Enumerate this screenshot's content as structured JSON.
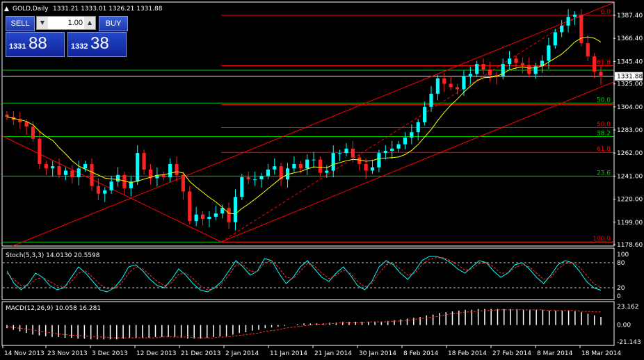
{
  "header": {
    "symbol": "GOLD,Daily",
    "ohlc": "1331.21 1333.01 1326.21 1331.88"
  },
  "trade_panel": {
    "sell_label": "SELL",
    "buy_label": "BUY",
    "lot_value": "1.00",
    "bid_prefix": "1331",
    "bid_big": "88",
    "ask_prefix": "1332",
    "ask_big": "38"
  },
  "colors": {
    "background": "#000000",
    "bull_candle": "#00ffff",
    "bear_candle": "#ff2222",
    "moving_average": "#ffff00",
    "fib_line_red": "#ff0000",
    "fib_line_green": "#00cc00",
    "stoch_main": "#00ffff",
    "stoch_signal": "#ff3333",
    "macd_hist": "#ffffff",
    "macd_signal": "#ff3333",
    "current_price_box": "#ffffff"
  },
  "chart_data": [
    {
      "type": "candlestick",
      "name": "GOLD,Daily",
      "x_tick_labels": [
        "14 Nov 2013",
        "23 Nov 2013",
        "3 Dec 2013",
        "12 Dec 2013",
        "21 Dec 2013",
        "2 Jan 2014",
        "11 Jan 2014",
        "21 Jan 2014",
        "30 Jan 2014",
        "8 Feb 2014",
        "18 Feb 2014",
        "27 Feb 2014",
        "8 Mar 2014",
        "18 Mar 2014"
      ],
      "y_tick_labels": [
        "1387.40",
        "1366.40",
        "1345.40",
        "1325.00",
        "1304.00",
        "1283.00",
        "1262.00",
        "1241.00",
        "1220.00",
        "1199.00",
        "1178.60"
      ],
      "ylim": [
        1178.6,
        1387.4
      ],
      "current_price": "1331.88",
      "candles_close": [
        1295,
        1292,
        1290,
        1286,
        1275,
        1252,
        1248,
        1250,
        1242,
        1246,
        1240,
        1248,
        1252,
        1232,
        1225,
        1228,
        1236,
        1242,
        1230,
        1236,
        1262,
        1247,
        1239,
        1242,
        1240,
        1252,
        1242,
        1227,
        1200,
        1206,
        1202,
        1204,
        1207,
        1212,
        1199,
        1222,
        1240,
        1238,
        1238,
        1241,
        1247,
        1250,
        1238,
        1248,
        1252,
        1248,
        1256,
        1256,
        1244,
        1246,
        1262,
        1262,
        1266,
        1258,
        1252,
        1246,
        1249,
        1262,
        1264,
        1266,
        1270,
        1276,
        1281,
        1290,
        1304,
        1316,
        1330,
        1325,
        1322,
        1320,
        1332,
        1334,
        1343,
        1338,
        1333,
        1332,
        1343,
        1348,
        1344,
        1342,
        1334,
        1341,
        1346,
        1360,
        1372,
        1378,
        1386,
        1388,
        1362,
        1350,
        1336,
        1331.88
      ],
      "moving_average_visible": true,
      "fibonacci_channel_labels_top": [
        "0.0",
        "61.8",
        "50.0",
        "38.2",
        "23.6",
        "100.0"
      ],
      "fibonacci_labels": [
        "0.0",
        "61.8",
        "50.0",
        "50.0",
        "38.2",
        "61.8",
        "23.6",
        "100.0"
      ]
    },
    {
      "type": "line",
      "name": "Stoch(5,3,3) 14.0130 20.5598",
      "title": "Stoch(5,3,3) 14.0130 20.5598",
      "y_tick_labels": [
        "100",
        "80",
        "20",
        "0"
      ],
      "ylim": [
        0,
        100
      ],
      "levels": [
        80,
        20
      ],
      "series": [
        {
          "name": "main",
          "values": [
            60,
            30,
            15,
            30,
            55,
            45,
            25,
            15,
            20,
            45,
            70,
            55,
            35,
            15,
            10,
            20,
            40,
            70,
            75,
            60,
            40,
            25,
            20,
            40,
            65,
            50,
            30,
            15,
            10,
            20,
            35,
            60,
            85,
            70,
            50,
            60,
            90,
            85,
            55,
            30,
            45,
            70,
            85,
            65,
            45,
            35,
            55,
            70,
            50,
            25,
            15,
            35,
            70,
            85,
            75,
            55,
            40,
            60,
            85,
            95,
            95,
            90,
            80,
            65,
            55,
            70,
            85,
            80,
            60,
            45,
            55,
            75,
            80,
            65,
            45,
            30,
            50,
            75,
            85,
            80,
            60,
            35,
            20,
            14
          ]
        },
        {
          "name": "signal",
          "values": [
            55,
            40,
            25,
            25,
            40,
            45,
            35,
            25,
            22,
            35,
            55,
            60,
            45,
            28,
            18,
            18,
            30,
            55,
            70,
            65,
            50,
            35,
            25,
            32,
            52,
            55,
            42,
            25,
            15,
            18,
            30,
            50,
            75,
            75,
            60,
            58,
            80,
            85,
            68,
            45,
            42,
            60,
            78,
            72,
            55,
            42,
            50,
            62,
            55,
            35,
            22,
            30,
            55,
            75,
            78,
            65,
            50,
            55,
            75,
            88,
            92,
            92,
            85,
            75,
            62,
            65,
            78,
            80,
            70,
            55,
            55,
            68,
            75,
            70,
            55,
            40,
            45,
            65,
            78,
            80,
            70,
            50,
            30,
            20.56
          ]
        }
      ]
    },
    {
      "type": "bar",
      "name": "MACD(12,26,9) 10.058 16.281",
      "title": "MACD(12,26,9) 10.058 16.281",
      "y_tick_labels": [
        "23.162",
        "0.00",
        "-21.143"
      ],
      "ylim": [
        -21.143,
        23.162
      ],
      "macd_values": [
        -4,
        -6,
        -8,
        -10,
        -12,
        -13,
        -14,
        -15,
        -15,
        -16,
        -16,
        -17,
        -17,
        -18,
        -18,
        -18,
        -18,
        -18,
        -17,
        -16,
        -16,
        -16,
        -16,
        -15,
        -15,
        -15,
        -15,
        -16,
        -17,
        -17,
        -17,
        -16,
        -15,
        -14,
        -14,
        -12,
        -10,
        -9,
        -7,
        -6,
        -4,
        -3,
        -2,
        -1,
        0,
        1,
        2,
        2,
        2,
        2,
        3,
        3,
        4,
        4,
        4,
        4,
        4,
        4,
        4,
        5,
        6,
        7,
        8,
        9,
        10,
        12,
        13,
        15,
        16,
        17,
        18,
        19,
        19,
        20,
        20,
        20,
        20,
        20,
        20,
        20,
        19,
        19,
        19,
        19,
        18,
        18,
        18,
        18,
        17,
        16,
        14,
        12,
        10.058
      ],
      "signal_values": [
        -2,
        -3,
        -4,
        -5,
        -6,
        -8,
        -9,
        -10,
        -11,
        -12,
        -13,
        -13,
        -14,
        -14,
        -15,
        -15,
        -16,
        -16,
        -16,
        -16,
        -16,
        -16,
        -16,
        -16,
        -15,
        -15,
        -15,
        -15,
        -15,
        -16,
        -16,
        -16,
        -16,
        -15,
        -15,
        -14,
        -13,
        -12,
        -11,
        -10,
        -8,
        -7,
        -6,
        -4,
        -3,
        -2,
        -1,
        0,
        1,
        1,
        2,
        2,
        3,
        3,
        3,
        3,
        4,
        4,
        4,
        4,
        5,
        5,
        6,
        7,
        8,
        9,
        10,
        11,
        13,
        14,
        15,
        16,
        17,
        17,
        18,
        18,
        19,
        19,
        19,
        19,
        19,
        19,
        19,
        19,
        18,
        18,
        18,
        18,
        18,
        17,
        17,
        16.5,
        16.281
      ]
    }
  ]
}
